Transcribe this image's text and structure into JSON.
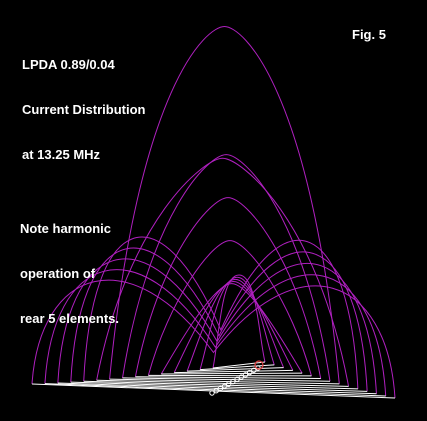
{
  "title_lines": [
    "LPDA 0.89/0.04",
    "Current Distribution",
    "at 13.25 MHz"
  ],
  "figure_label": "Fig. 5",
  "note_lines": [
    "Note harmonic",
    "operation of",
    "rear 5 elements."
  ],
  "colors": {
    "background": "#000000",
    "text": "#ffffff",
    "current_curves": "#b020c0",
    "elements": "#ffffff",
    "feedpoint_marker": "#e04040"
  },
  "element_count": 15,
  "harmonic_rear_elements": 5
}
